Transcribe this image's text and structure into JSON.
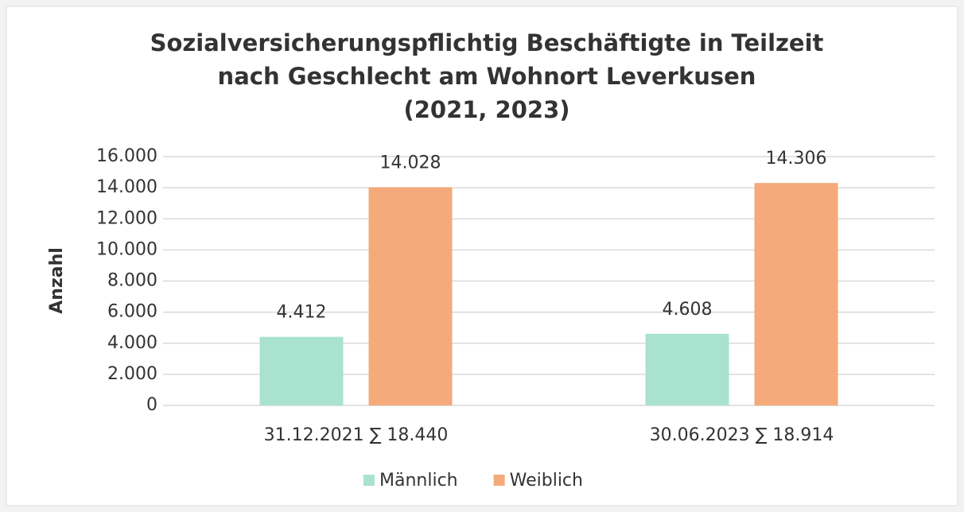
{
  "chart_data": {
    "type": "bar",
    "title": [
      "Sozialversicherungspflichtig Beschäftigte in Teilzeit",
      "nach Geschlecht am Wohnort Leverkusen",
      "(2021, 2023)"
    ],
    "y_label": "Anzahl",
    "categories": [
      "31.12.2021 ∑ 18.440",
      "30.06.2023 ∑ 18.914"
    ],
    "series": [
      {
        "name": "Männlich",
        "color": "#a9e2cf",
        "values": [
          4412,
          4608
        ],
        "value_labels": [
          "4.412",
          "4.608"
        ]
      },
      {
        "name": "Weiblich",
        "color": "#f4aa7a",
        "values": [
          14028,
          14306
        ],
        "value_labels": [
          "14.028",
          "14.306"
        ]
      }
    ],
    "ylim": [
      0,
      16000
    ],
    "yticks": [
      0,
      {
        "value": 2000,
        "label": "2.000"
      },
      {
        "value": 4000,
        "label": "4.000"
      },
      {
        "value": 6000,
        "label": "6.000"
      },
      {
        "value": 8000,
        "label": "8.000"
      },
      {
        "value": 10000,
        "label": "10.000"
      },
      {
        "value": 12000,
        "label": "12.000"
      },
      {
        "value": 14000,
        "label": "14.000"
      },
      {
        "value": 16000,
        "label": "16.000"
      }
    ],
    "grid": true,
    "legend": "bottom"
  }
}
